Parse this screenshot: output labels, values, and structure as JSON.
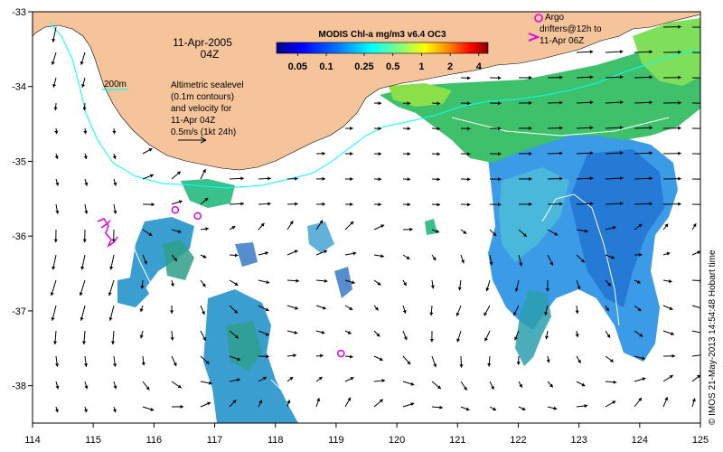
{
  "title": "MODIS Chl-a mg/m3 v6.4 OC3",
  "date_line": "11-Apr-2005",
  "time_line": "04Z",
  "isobath_label": "200m",
  "sealevel_note": [
    "Altimetric sealevel",
    "(0.1m contours)",
    "and velocity for",
    "11-Apr 04Z",
    "0.5m/s (1kt 24h)"
  ],
  "argo_note": [
    "Argo",
    "drifters@12h to",
    "11-Apr 06Z"
  ],
  "credit": "© IMOS 21-May-2013 14:54:48 Hobart time",
  "colorbar": {
    "tick_labels": [
      "0.05",
      "0.1",
      "0.25",
      "0.5",
      "1",
      "2",
      "4"
    ],
    "tick_values": [
      0.05,
      0.1,
      0.25,
      0.5,
      1,
      2,
      4
    ],
    "range": [
      0.03,
      5
    ],
    "scale": "log",
    "colors": [
      "#00008f",
      "#0000ff",
      "#0080ff",
      "#00ffff",
      "#80ff80",
      "#ffff00",
      "#ff8000",
      "#ff0000",
      "#800000"
    ]
  },
  "x_axis": {
    "ticks": [
      114,
      115,
      116,
      117,
      118,
      119,
      120,
      121,
      122,
      123,
      124,
      125
    ],
    "labels": [
      "114",
      "115",
      "116",
      "117",
      "118",
      "119",
      "120",
      "121",
      "122",
      "123",
      "124",
      "125"
    ],
    "range": [
      114,
      125
    ]
  },
  "y_axis": {
    "ticks": [
      -33,
      -34,
      -35,
      -36,
      -37,
      -38
    ],
    "labels": [
      "-33",
      "-34",
      "-35",
      "-36",
      "-37",
      "-38"
    ],
    "range": [
      -38.5,
      -33
    ]
  },
  "colors": {
    "land": "#f6c49a",
    "isobath": "#00ffff",
    "argo": "#e000e0",
    "contour": "#ffffff"
  },
  "argo_floats": [
    {
      "lon": 116.35,
      "lat": -35.65
    },
    {
      "lon": 116.72,
      "lat": -35.73
    },
    {
      "lon": 119.08,
      "lat": -37.57
    }
  ]
}
